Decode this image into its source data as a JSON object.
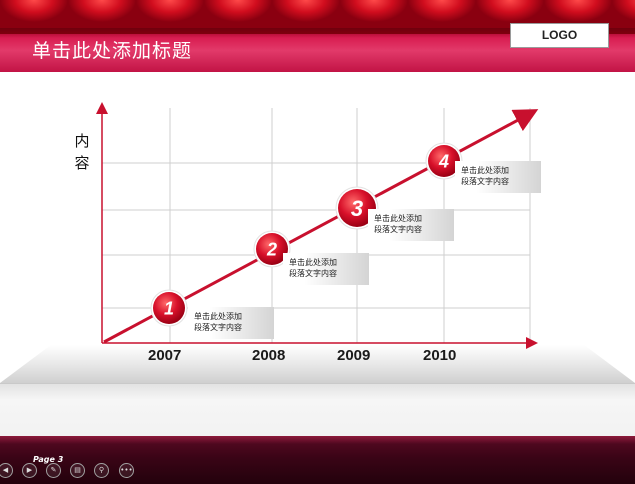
{
  "header": {
    "title": "单击此处添加标题",
    "logo": "LOGO"
  },
  "diagram": {
    "y_label_line1": "内",
    "y_label_line2": "容",
    "steps": [
      {
        "number": "1",
        "year": "2007",
        "text_line1": "单击此处添加",
        "text_line2": "段落文字内容"
      },
      {
        "number": "2",
        "year": "2008",
        "text_line1": "单击此处添加",
        "text_line2": "段落文字内容"
      },
      {
        "number": "3",
        "year": "2009",
        "text_line1": "单击此处添加",
        "text_line2": "段落文字内容"
      },
      {
        "number": "4",
        "year": "2010",
        "text_line1": "单击此处添加",
        "text_line2": "段落文字内容"
      }
    ],
    "colors": {
      "accent": "#c8102e",
      "grid": "#cfcfcf",
      "axis": "#c8102e"
    }
  },
  "footer": {
    "page_label": "Page 3",
    "nav": [
      {
        "icon": "prev-icon",
        "glyph": "◀"
      },
      {
        "icon": "next-icon",
        "glyph": "▶"
      },
      {
        "icon": "pen-icon",
        "glyph": "✎"
      },
      {
        "icon": "slides-icon",
        "glyph": "▤"
      },
      {
        "icon": "zoom-icon",
        "glyph": "⚲"
      },
      {
        "icon": "more-icon",
        "glyph": "•••"
      }
    ]
  }
}
